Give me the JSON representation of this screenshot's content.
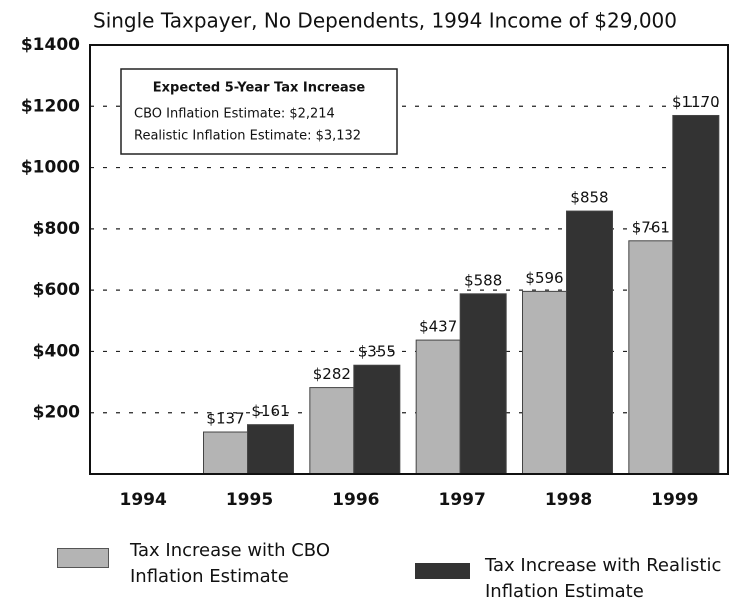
{
  "chart_data": {
    "type": "bar",
    "title": "Single Taxpayer, No Dependents, 1994 Income of $29,000",
    "categories": [
      "1994",
      "1995",
      "1996",
      "1997",
      "1998",
      "1999"
    ],
    "series": [
      {
        "name": "Tax Increase with CBO Inflation Estimate",
        "color": "#b4b4b4",
        "values": [
          null,
          137,
          282,
          437,
          596,
          761
        ],
        "value_labels": [
          null,
          "$137",
          "$282",
          "$437",
          "$596",
          "$761"
        ]
      },
      {
        "name": "Tax Increase with Realistic Inflation Estimate",
        "color": "#333333",
        "values": [
          null,
          161,
          355,
          588,
          858,
          1170
        ],
        "value_labels": [
          null,
          "$161",
          "$355",
          "$588",
          "$858",
          "$1170"
        ]
      }
    ],
    "ylim": [
      0,
      1400
    ],
    "yticks": [
      {
        "value": 200,
        "label": "$200"
      },
      {
        "value": 400,
        "label": "$400"
      },
      {
        "value": 600,
        "label": "$600"
      },
      {
        "value": 800,
        "label": "$800"
      },
      {
        "value": 1000,
        "label": "$1000"
      },
      {
        "value": 1200,
        "label": "$1200"
      },
      {
        "value": 1400,
        "label": "$1400"
      }
    ],
    "grid": true,
    "annotation": {
      "title": "Expected 5-Year Tax Increase",
      "lines": [
        "CBO Inflation Estimate: $2,214",
        "Realistic Inflation Estimate: $3,132"
      ]
    }
  }
}
